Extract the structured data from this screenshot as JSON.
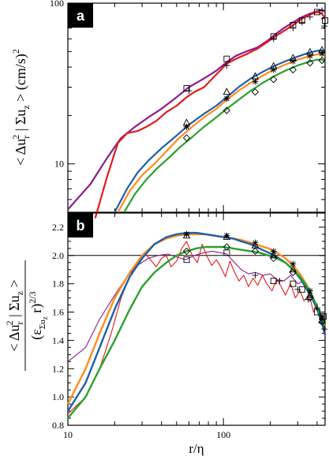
{
  "chart_data": [
    {
      "type": "line",
      "panel_label": "a",
      "ylabel": "< Δu_r² | Σu_z > (cm/s)²",
      "ylabel_parts": [
        "< Δu",
        "r",
        "2",
        " | Σu",
        "z",
        " > (cm/s)",
        "2"
      ],
      "xlabel": "",
      "xscale": "log",
      "yscale": "log",
      "xlim": [
        10,
        450
      ],
      "ylim": [
        5,
        100
      ],
      "x_ticks": [],
      "y_ticks": [
        {
          "value": 10,
          "label": "10"
        },
        {
          "value": 100,
          "label": "100"
        }
      ],
      "colors": {
        "purple": "#8a1f8f",
        "red": "#e31a1c",
        "blue": "#1f5fa8",
        "orange": "#ff8c1a",
        "green": "#2ca02c"
      },
      "series": [
        {
          "color": "purple",
          "x": [
            10,
            14,
            18,
            22,
            27,
            33,
            40,
            50,
            60,
            75,
            90,
            105,
            120,
            140,
            165,
            190,
            220,
            250,
            280,
            320,
            360,
            400,
            430,
            450
          ],
          "y": [
            5.2,
            7.5,
            11,
            14.5,
            17,
            19.5,
            22,
            26,
            30,
            34,
            38,
            43,
            47,
            50,
            53,
            58,
            65,
            71,
            76,
            82,
            86,
            89,
            91,
            88
          ]
        },
        {
          "color": "red",
          "x": [
            15,
            18,
            21,
            24,
            28,
            32,
            37,
            43,
            50,
            58,
            65,
            75,
            85,
            95,
            105,
            120,
            140,
            165,
            190,
            220,
            250,
            280,
            320,
            360,
            400,
            430,
            450
          ],
          "y": [
            4.6,
            8.5,
            13.5,
            15.5,
            16,
            17,
            18.5,
            21,
            23,
            26,
            28,
            30,
            34,
            38,
            42,
            45,
            48,
            52,
            57,
            63,
            68,
            73,
            80,
            85,
            88,
            86,
            80
          ]
        },
        {
          "color": "blue",
          "x": [
            20,
            24,
            28,
            33,
            40,
            50,
            60,
            75,
            90,
            105,
            125,
            150,
            180,
            210,
            250,
            300,
            350,
            400,
            430,
            450
          ],
          "y": [
            5,
            7,
            8.8,
            10.5,
            12.5,
            15,
            17.5,
            20.5,
            23,
            26,
            30,
            34,
            37.5,
            40.5,
            43.5,
            46.5,
            49,
            50.5,
            51,
            50
          ]
        },
        {
          "color": "orange",
          "x": [
            21,
            25,
            30,
            36,
            43,
            52,
            62,
            75,
            90,
            105,
            125,
            150,
            180,
            210,
            250,
            300,
            350,
            400,
            430,
            450
          ],
          "y": [
            5,
            6.8,
            8.5,
            10,
            12,
            14.5,
            16.8,
            19.5,
            22,
            25,
            28.5,
            32,
            35.5,
            38.5,
            41.5,
            44.5,
            46.5,
            48,
            48.5,
            47.5
          ]
        },
        {
          "color": "green",
          "x": [
            23,
            27,
            32,
            38,
            45,
            53,
            62,
            75,
            90,
            105,
            125,
            150,
            180,
            210,
            250,
            300,
            350,
            400,
            430,
            450
          ],
          "y": [
            5,
            6.5,
            8,
            9.5,
            11,
            12.8,
            14.5,
            17,
            19.5,
            22,
            25,
            28.5,
            32,
            35,
            38,
            41,
            43,
            44.5,
            44.5,
            43
          ]
        }
      ],
      "markers": [
        {
          "symbol": "square",
          "points": [
            [
              58,
              29.5
            ],
            [
              105,
              45
            ],
            [
              210,
              62
            ],
            [
              280,
              73
            ],
            [
              320,
              78
            ],
            [
              400,
              88
            ],
            [
              450,
              78
            ]
          ]
        },
        {
          "symbol": "plus",
          "points": [
            [
              60,
              28.5
            ],
            [
              105,
              41
            ],
            [
              210,
              60
            ],
            [
              280,
              70
            ],
            [
              320,
              76
            ],
            [
              360,
              82
            ],
            [
              430,
              90
            ],
            [
              445,
              72
            ]
          ]
        },
        {
          "symbol": "triangle",
          "points": [
            [
              58,
              18
            ],
            [
              105,
              28
            ],
            [
              160,
              35
            ],
            [
              210,
              40.5
            ],
            [
              280,
              45.5
            ],
            [
              360,
              49.5
            ],
            [
              430,
              51
            ]
          ]
        },
        {
          "symbol": "star",
          "points": [
            [
              58,
              17
            ],
            [
              105,
              25.5
            ],
            [
              160,
              32.5
            ],
            [
              210,
              38.5
            ],
            [
              280,
              43.5
            ],
            [
              360,
              47
            ],
            [
              430,
              48.5
            ]
          ]
        },
        {
          "symbol": "diamond",
          "points": [
            [
              58,
              14.5
            ],
            [
              105,
              21.5
            ],
            [
              160,
              28
            ],
            [
              210,
              33.5
            ],
            [
              280,
              38.5
            ],
            [
              360,
              42.5
            ],
            [
              430,
              44
            ]
          ]
        }
      ]
    },
    {
      "type": "line",
      "panel_label": "b",
      "ylabel_numerator_parts": [
        "< Δu",
        "r",
        "2",
        " | Σu",
        "z",
        " >"
      ],
      "ylabel_denominator_parts": [
        "(ε",
        "Σu",
        "z",
        " r)",
        "2/3"
      ],
      "xlabel": "r/η",
      "xscale": "log",
      "yscale": "linear",
      "xlim": [
        10,
        450
      ],
      "ylim": [
        0.8,
        2.3
      ],
      "reference_line": 2.0,
      "x_ticks": [
        {
          "value": 10,
          "label": "10"
        },
        {
          "value": 100,
          "label": "100"
        }
      ],
      "y_ticks": [
        {
          "value": 0.8,
          "label": "0.8"
        },
        {
          "value": 1.0,
          "label": "1.0"
        },
        {
          "value": 1.2,
          "label": "1.2"
        },
        {
          "value": 1.4,
          "label": "1.4"
        },
        {
          "value": 1.6,
          "label": "1.6"
        },
        {
          "value": 1.8,
          "label": "1.8"
        },
        {
          "value": 2.0,
          "label": "2.0"
        },
        {
          "value": 2.2,
          "label": "2.2"
        }
      ],
      "colors": {
        "purple": "#8a1f8f",
        "red": "#e31a1c",
        "blue": "#1f5fa8",
        "orange": "#ff8c1a",
        "green": "#2ca02c"
      },
      "series": [
        {
          "color": "purple",
          "width": 1.1,
          "x": [
            10,
            13,
            16,
            20,
            24,
            28,
            33,
            38,
            44,
            50,
            57,
            65,
            75,
            85,
            95,
            105,
            118,
            130,
            145,
            160,
            180,
            200,
            220,
            245,
            270,
            300,
            330,
            360,
            390,
            420,
            450
          ],
          "y": [
            1.25,
            1.35,
            1.55,
            1.72,
            1.85,
            1.93,
            1.98,
            2.0,
            2.01,
            1.99,
            1.97,
            2.0,
            2.02,
            2.03,
            2.02,
            2.01,
            1.95,
            1.9,
            1.87,
            1.88,
            1.86,
            1.87,
            1.83,
            1.82,
            1.86,
            1.8,
            1.82,
            1.72,
            1.65,
            1.55,
            1.45
          ]
        },
        {
          "color": "red",
          "width": 1.1,
          "x": [
            10,
            13,
            16,
            19,
            22,
            25,
            28,
            31,
            34,
            37,
            40,
            43,
            46,
            50,
            54,
            58,
            63,
            68,
            73,
            78,
            84,
            90,
            96,
            103,
            110,
            118,
            126,
            135,
            145,
            155,
            166,
            178,
            190,
            205,
            220,
            235,
            250,
            270,
            290,
            310,
            330,
            355,
            380,
            400,
            420,
            440,
            450
          ],
          "y": [
            0.88,
            1.0,
            1.2,
            1.45,
            1.7,
            1.85,
            1.95,
            2.02,
            1.97,
            1.92,
            1.98,
            2.0,
            1.92,
            1.96,
            2.05,
            2.1,
            2.0,
            1.95,
            2.08,
            2.0,
            1.93,
            1.97,
            1.92,
            1.85,
            1.96,
            1.88,
            1.82,
            1.86,
            1.78,
            1.84,
            1.79,
            1.86,
            1.8,
            1.75,
            1.83,
            1.78,
            1.72,
            1.8,
            1.7,
            1.75,
            1.68,
            1.72,
            1.6,
            1.66,
            1.52,
            1.58,
            1.45
          ]
        },
        {
          "color": "orange",
          "width": 2.4,
          "x": [
            10,
            13,
            16,
            20,
            25,
            30,
            36,
            43,
            50,
            58,
            67,
            77,
            88,
            100,
            115,
            130,
            150,
            170,
            195,
            220,
            250,
            280,
            310,
            340,
            370,
            400,
            430,
            450
          ],
          "y": [
            0.95,
            1.2,
            1.45,
            1.7,
            1.88,
            2.0,
            2.08,
            2.12,
            2.14,
            2.15,
            2.15,
            2.15,
            2.14,
            2.13,
            2.12,
            2.11,
            2.09,
            2.07,
            2.05,
            2.02,
            1.98,
            1.93,
            1.87,
            1.8,
            1.72,
            1.63,
            1.55,
            1.5
          ]
        },
        {
          "color": "blue",
          "width": 2.4,
          "x": [
            10,
            13,
            16,
            20,
            25,
            30,
            36,
            43,
            50,
            58,
            67,
            77,
            88,
            100,
            115,
            130,
            150,
            170,
            195,
            220,
            250,
            280,
            310,
            340,
            370,
            400,
            430,
            450
          ],
          "y": [
            0.9,
            1.1,
            1.35,
            1.62,
            1.85,
            1.98,
            2.08,
            2.13,
            2.15,
            2.16,
            2.16,
            2.15,
            2.14,
            2.13,
            2.12,
            2.1,
            2.08,
            2.05,
            2.02,
            1.99,
            1.95,
            1.9,
            1.84,
            1.77,
            1.7,
            1.62,
            1.52,
            1.44
          ]
        },
        {
          "color": "green",
          "width": 2.4,
          "x": [
            10,
            13,
            16,
            20,
            25,
            30,
            36,
            43,
            50,
            58,
            67,
            77,
            88,
            100,
            115,
            130,
            150,
            170,
            195,
            220,
            250,
            280,
            310,
            340,
            370,
            400,
            430,
            450
          ],
          "y": [
            0.85,
            1.0,
            1.2,
            1.4,
            1.62,
            1.78,
            1.88,
            1.95,
            2.0,
            2.03,
            2.05,
            2.06,
            2.06,
            2.06,
            2.05,
            2.04,
            2.03,
            2.02,
            2.0,
            1.98,
            1.95,
            1.9,
            1.85,
            1.79,
            1.72,
            1.64,
            1.55,
            1.5
          ]
        }
      ],
      "markers": [
        {
          "symbol": "square",
          "points": [
            [
              58,
              1.97
            ],
            [
              105,
              2.02
            ],
            [
              210,
              1.82
            ],
            [
              280,
              1.8
            ],
            [
              320,
              1.76
            ],
            [
              400,
              1.6
            ],
            [
              440,
              1.57
            ]
          ]
        },
        {
          "symbol": "plus",
          "points": [
            [
              160,
              1.86
            ],
            [
              230,
              1.82
            ],
            [
              300,
              1.76
            ],
            [
              350,
              1.69
            ],
            [
              400,
              1.63
            ],
            [
              430,
              1.55
            ],
            [
              445,
              1.48
            ]
          ]
        },
        {
          "symbol": "triangle",
          "points": [
            [
              58,
              2.14
            ],
            [
              105,
              2.13
            ],
            [
              160,
              2.07
            ],
            [
              210,
              2.0
            ],
            [
              280,
              1.9
            ],
            [
              360,
              1.72
            ],
            [
              430,
              1.54
            ]
          ]
        },
        {
          "symbol": "star",
          "points": [
            [
              58,
              2.15
            ],
            [
              105,
              2.14
            ],
            [
              160,
              2.09
            ],
            [
              210,
              2.03
            ],
            [
              280,
              1.94
            ],
            [
              360,
              1.75
            ],
            [
              430,
              1.57
            ]
          ]
        },
        {
          "symbol": "diamond",
          "points": [
            [
              58,
              2.03
            ],
            [
              105,
              2.06
            ],
            [
              160,
              2.03
            ],
            [
              210,
              1.98
            ],
            [
              280,
              1.88
            ],
            [
              360,
              1.7
            ],
            [
              430,
              1.53
            ]
          ]
        }
      ]
    }
  ]
}
